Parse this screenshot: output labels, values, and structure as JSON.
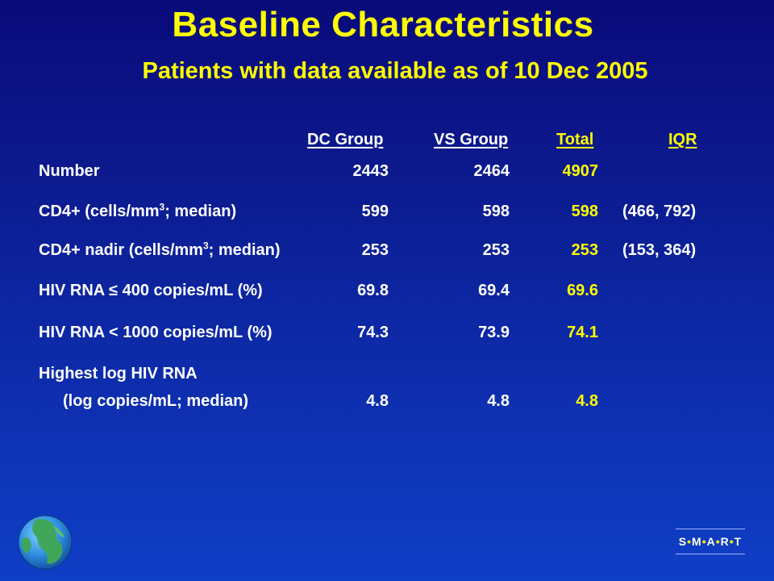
{
  "title": "Baseline Characteristics",
  "subtitle": "Patients with data available as of 10 Dec 2005",
  "columns": {
    "dc": "DC Group",
    "vs": "VS Group",
    "total": "Total",
    "iqr": "IQR"
  },
  "rows": [
    {
      "label": "Number",
      "dc": "2443",
      "vs": "2464",
      "total": "4907",
      "iqr": ""
    },
    {
      "label_pre": "CD4+ (cells/mm",
      "label_sup": "3",
      "label_post": "; median)",
      "dc": "599",
      "vs": "598",
      "total": "598",
      "iqr": "(466, 792)"
    },
    {
      "label_pre": "CD4+ nadir (cells/mm",
      "label_sup": "3",
      "label_post": "; median)",
      "dc": "253",
      "vs": "253",
      "total": "253",
      "iqr": "(153, 364)"
    },
    {
      "label": "HIV RNA ≤ 400 copies/mL (%)",
      "dc": "69.8",
      "vs": "69.4",
      "total": "69.6",
      "iqr": ""
    },
    {
      "label": "HIV RNA < 1000 copies/mL (%)",
      "dc": "74.3",
      "vs": "73.9",
      "total": "74.1",
      "iqr": ""
    },
    {
      "label": "Highest log HIV RNA",
      "label2": "(log copies/mL; median)",
      "dc": "4.8",
      "vs": "4.8",
      "total": "4.8",
      "iqr": ""
    }
  ],
  "logo": {
    "letters": [
      "S",
      "M",
      "A",
      "R",
      "T"
    ],
    "separator": "•"
  },
  "colors": {
    "accent": "#ffff00",
    "text": "#ffffff",
    "background_top": "#0a0a7a",
    "background_bottom": "#0f3fc6"
  },
  "icons": {
    "globe": "globe-icon"
  }
}
